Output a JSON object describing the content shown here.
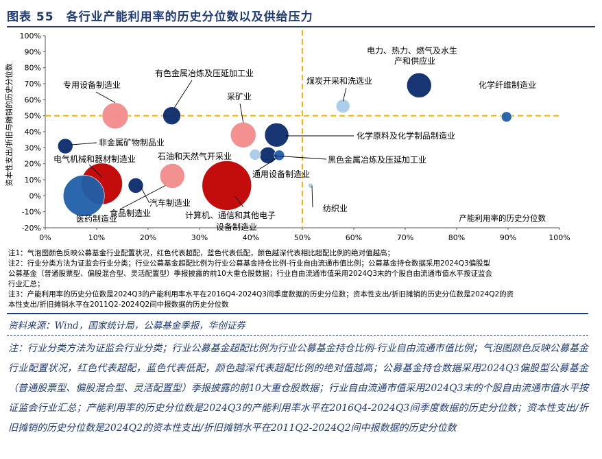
{
  "figure": {
    "title": "图表 55　各行业产能利用率的历史分位数以及供给压力"
  },
  "chart_data": {
    "type": "scatter",
    "subtype": "bubble",
    "ylabel": "资本性支出/折旧与摊销的历史分位数",
    "xlabel": "产能利用率的历史分位数",
    "xlim": [
      0,
      100
    ],
    "ylim": [
      -20,
      100
    ],
    "x_ticks": [
      "0%",
      "10%",
      "20%",
      "30%",
      "40%",
      "50%",
      "60%",
      "70%",
      "80%",
      "90%",
      "100%"
    ],
    "y_ticks": [
      "100%",
      "90%",
      "80%",
      "70%",
      "60%",
      "50%",
      "40%",
      "30%",
      "20%",
      "10%",
      "0%",
      "-10%",
      "-20%"
    ],
    "reference_lines": {
      "x": 50,
      "y": 50,
      "color": "#f2b21a",
      "style": "dashed"
    },
    "colors": {
      "red_dark": "#c00000",
      "red_light": "#f28b8b",
      "blue_dark": "#0a2a6a",
      "blue_mid": "#1f5fa8",
      "blue_light": "#a9cbe8"
    },
    "series": [
      {
        "label": "专用设备制造业",
        "x": 13.6,
        "y": 50,
        "size": 38,
        "color": "red_light"
      },
      {
        "label": "有色金属冶炼及压延加工业",
        "x": 24.6,
        "y": 50,
        "size": 26,
        "color": "blue_dark"
      },
      {
        "label": "采矿业",
        "x": 38.5,
        "y": 38,
        "size": 37,
        "color": "red_light"
      },
      {
        "label": "非金属矿物制品业",
        "x": 3.9,
        "y": 31,
        "size": 22,
        "color": "blue_dark"
      },
      {
        "label": "化学原料及化学制品制造业",
        "x": 45,
        "y": 38,
        "size": 35,
        "color": "blue_dark"
      },
      {
        "label": "石油和天然气开采业",
        "x": 40.8,
        "y": 25.7,
        "size": 16,
        "color": "blue_light"
      },
      {
        "label": "黑色金属冶炼及压延加工业",
        "x": 43.3,
        "y": 25.3,
        "size": 24,
        "color": "blue_dark"
      },
      {
        "label": "通用设备制造业",
        "x": 45.5,
        "y": 25.3,
        "size": 15,
        "color": "blue_mid"
      },
      {
        "label": "电气机械和器材制造业",
        "x": 11,
        "y": 7.5,
        "size": 60,
        "color": "red_dark"
      },
      {
        "label": "汽车制造业",
        "x": 17.6,
        "y": 6.4,
        "size": 22,
        "color": "blue_dark"
      },
      {
        "label": "食品制造业",
        "x": 24.7,
        "y": 12.4,
        "size": 36,
        "color": "red_light"
      },
      {
        "label": "计算机、通信和其他电子设备制造业",
        "x": 35.3,
        "y": 6.4,
        "size": 72,
        "color": "red_dark"
      },
      {
        "label": "医药制造业",
        "x": 7.5,
        "y": 0,
        "size": 60,
        "color": "blue_mid"
      },
      {
        "label": "纺织业",
        "x": 51.6,
        "y": 6.3,
        "size": 7,
        "color": "blue_light"
      },
      {
        "label": "煤炭开采和洗选业",
        "x": 57.9,
        "y": 56,
        "size": 20,
        "color": "blue_light"
      },
      {
        "label": "电力、热力、燃气及水生产和供应业",
        "x": 72.7,
        "y": 69,
        "size": 36,
        "color": "blue_dark"
      },
      {
        "label": "化学纤维制造业",
        "x": 89.7,
        "y": 49.3,
        "size": 15,
        "color": "blue_mid"
      }
    ],
    "annotations": {
      "dianli_line1": "电力、热力、燃气及水生",
      "dianli_line2": "产和供应业",
      "jisuanji_line1": "计算机、通信和其他电子",
      "jisuanji_line2": "设备制造业",
      "meitan": "煤炭开采和洗选业",
      "huaxue_xianwei": "化学纤维制造业",
      "zhuanyong": "专用设备制造业",
      "youse": "有色金属冶炼及压延加工业",
      "caikuang": "采矿业",
      "feijinshu": "非金属矿物制品业",
      "huaxue_yuanliao": "化学原料及化学制品制造业",
      "dianqi": "电气机械和器材制造业",
      "shiyou": "石油和天然气开采业",
      "heise": "黑色金属冶炼及压延加工业",
      "tongyong": "通用设备制造业",
      "qiche": "汽车制造业",
      "shipin": "食品制造业",
      "yiyao": "医药制造业",
      "fangzhi": "纺织业"
    }
  },
  "notes": [
    "注1：气泡图颜色反映公募基金行业配置状况，红色代表超配，蓝色代表低配，颜色越深代表相比超配比例的绝对值越高；",
    "注2：行业分类方法为证监会行业分类；行业公募基金超配比例为行业公募基金持仓比例-行业自由流通市值比例；公募基金持仓数据采用2024Q3偏股型",
    "公募基金（普通股票型、偏股混合型、灵活配置型）季报披露的前10大重仓股数据；行业自由流通市值采用2024Q3末的个股自由流通市值水平按证监会",
    "行业汇总；",
    "注3：产能利用率的历史分位数是2024Q3的产能利用率水平在2016Q4-2024Q3间季度数据的历史分位数；资本性支出/折旧摊销的历史分位数是2024Q2的资",
    "本性支出/折旧摊销水平在2011Q2-2024Q2间中报数据的历史分位数"
  ],
  "source": "资料来源：Wind，国家统计局，公募基金季报，华创证券",
  "footnote": "注：行业分类方法为证监会行业分类；行业公募基金超配比例为行业公募基金持仓比例-行业自由流通市值比例；气泡图颜色反映公募基金行业配置状况，红色代表超配，蓝色代表低配，颜色越深代表超配比例的绝对值越高；公募基金持仓数据采用2024Q3偏股型公募基金（普通股票型、偏股混合型、灵活配置型）季报披露的前10大重仓股数据；行业自由流通市值采用2024Q3末的个股自由流通市值水平按证监会行业汇总；产能利用率的历史分位数是2024Q3的产能利用率水平在2016Q4-2024Q3间季度数据的历史分位数；资本性支出/折旧摊销的历史分位数是2024Q2的资本性支出/折旧摊销水平在2011Q2-2024Q2间中报数据的历史分位数"
}
